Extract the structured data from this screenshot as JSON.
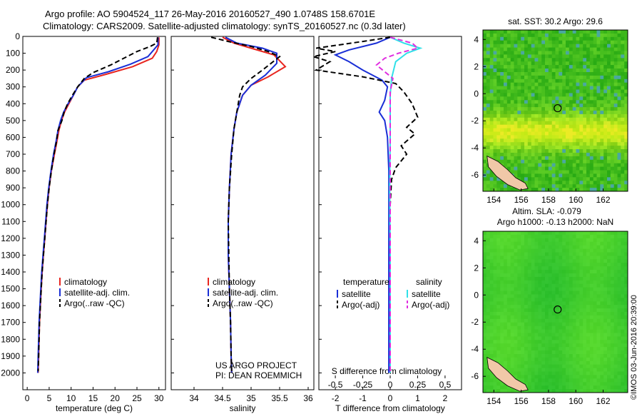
{
  "header": {
    "line1": "Argo profile: AO 5904524_117 26-May-2016 20160527_490 1.0748S 158.6701E",
    "line2": "Climatology: CARS2009. Satellite-adjusted climatology: synTS_20160527.nc (0.3d later)"
  },
  "stamp": "©IMOS 03-Jun-2016 20:39:00",
  "credit": {
    "line1": "US ARGO PROJECT",
    "line2": "PI: DEAN ROEMMICH"
  },
  "colors": {
    "climatology": "#e8251f",
    "satellite": "#1a2fd6",
    "argo": "#000000",
    "sal_satellite": "#2fe0e8",
    "sal_argo": "#e02ee0"
  },
  "chart_data": [
    {
      "type": "line",
      "id": "temperature",
      "xlabel": "temperature (deg C)",
      "ylabel": "",
      "xlim": [
        -1,
        31.5
      ],
      "ylim": [
        2100,
        0
      ],
      "xticks": [
        "0",
        "5",
        "10",
        "15",
        "20",
        "25",
        "30"
      ],
      "yticks": [
        "0",
        "100",
        "200",
        "300",
        "400",
        "500",
        "600",
        "700",
        "800",
        "900",
        "1000",
        "1100",
        "1200",
        "1300",
        "1400",
        "1500",
        "1600",
        "1700",
        "1800",
        "1900",
        "2000"
      ],
      "legend": [
        "climatology",
        "satellite-adj. clim.",
        "Argo(..raw -QC)"
      ],
      "series": [
        {
          "name": "climatology",
          "style": "solid",
          "color": "#e8251f",
          "points": [
            [
              30.0,
              5
            ],
            [
              30.0,
              50
            ],
            [
              29.5,
              90
            ],
            [
              28.5,
              130
            ],
            [
              24,
              180
            ],
            [
              18,
              225
            ],
            [
              13,
              260
            ],
            [
              11.5,
              300
            ],
            [
              10.5,
              350
            ],
            [
              9.5,
              400
            ],
            [
              8.5,
              450
            ],
            [
              7.8,
              500
            ],
            [
              7.2,
              560
            ],
            [
              6.8,
              620
            ],
            [
              6.2,
              700
            ],
            [
              5.5,
              800
            ],
            [
              5.0,
              900
            ],
            [
              4.6,
              1000
            ],
            [
              4.3,
              1100
            ],
            [
              4.0,
              1200
            ],
            [
              3.7,
              1300
            ],
            [
              3.4,
              1400
            ],
            [
              3.2,
              1500
            ],
            [
              3.0,
              1600
            ],
            [
              2.8,
              1700
            ],
            [
              2.7,
              1800
            ],
            [
              2.6,
              1900
            ],
            [
              2.5,
              2000
            ]
          ]
        },
        {
          "name": "satellite-adj. clim.",
          "style": "solid",
          "color": "#1a2fd6",
          "points": [
            [
              29.8,
              5
            ],
            [
              29.8,
              50
            ],
            [
              28.5,
              90
            ],
            [
              27.5,
              120
            ],
            [
              23.5,
              165
            ],
            [
              18.5,
              210
            ],
            [
              13.5,
              245
            ],
            [
              11.5,
              300
            ],
            [
              10.5,
              350
            ],
            [
              9.3,
              400
            ],
            [
              8.3,
              450
            ],
            [
              7.6,
              500
            ],
            [
              7.0,
              560
            ],
            [
              6.6,
              620
            ],
            [
              6.0,
              700
            ],
            [
              5.4,
              800
            ],
            [
              4.9,
              900
            ],
            [
              4.5,
              1000
            ],
            [
              4.2,
              1100
            ],
            [
              3.9,
              1200
            ],
            [
              3.6,
              1300
            ],
            [
              3.3,
              1400
            ],
            [
              3.1,
              1500
            ],
            [
              2.9,
              1600
            ],
            [
              2.7,
              1700
            ],
            [
              2.6,
              1800
            ],
            [
              2.5,
              1900
            ],
            [
              2.4,
              2000
            ]
          ]
        },
        {
          "name": "Argo(..raw -QC)",
          "style": "dashed",
          "color": "#000000",
          "points": [
            [
              29.7,
              5
            ],
            [
              29.5,
              40
            ],
            [
              28,
              60
            ],
            [
              25,
              90
            ],
            [
              22,
              130
            ],
            [
              19,
              170
            ],
            [
              15,
              215
            ],
            [
              13,
              250
            ],
            [
              11.5,
              300
            ],
            [
              10.3,
              350
            ],
            [
              9.2,
              400
            ],
            [
              8.4,
              450
            ],
            [
              7.9,
              500
            ],
            [
              7.0,
              560
            ],
            [
              6.7,
              620
            ],
            [
              6.1,
              700
            ],
            [
              5.5,
              800
            ],
            [
              5.0,
              900
            ],
            [
              4.6,
              1000
            ],
            [
              4.3,
              1100
            ],
            [
              4.0,
              1200
            ],
            [
              3.7,
              1300
            ],
            [
              3.4,
              1400
            ],
            [
              3.2,
              1500
            ],
            [
              3.0,
              1600
            ],
            [
              2.8,
              1700
            ],
            [
              2.7,
              1800
            ],
            [
              2.6,
              1900
            ],
            [
              2.5,
              1990
            ]
          ]
        }
      ]
    },
    {
      "type": "line",
      "id": "salinity",
      "xlabel": "salinity",
      "ylabel": "",
      "xlim": [
        33.6,
        36.1
      ],
      "ylim": [
        2100,
        0
      ],
      "xticks": [
        "34",
        "34.5",
        "35",
        "35.5",
        "36"
      ],
      "legend": [
        "climatology",
        "satellite-adj. clim.",
        "Argo(..raw -QC)"
      ],
      "series": [
        {
          "name": "climatology",
          "style": "solid",
          "color": "#e8251f",
          "points": [
            [
              34.5,
              5
            ],
            [
              34.7,
              40
            ],
            [
              35.0,
              70
            ],
            [
              35.4,
              110
            ],
            [
              35.6,
              180
            ],
            [
              35.3,
              240
            ],
            [
              35.0,
              290
            ],
            [
              34.85,
              350
            ],
            [
              34.75,
              450
            ],
            [
              34.7,
              550
            ],
            [
              34.65,
              700
            ],
            [
              34.62,
              900
            ],
            [
              34.6,
              1100
            ],
            [
              34.6,
              1300
            ],
            [
              34.62,
              1500
            ],
            [
              34.64,
              1700
            ],
            [
              34.65,
              1900
            ],
            [
              34.66,
              2000
            ]
          ]
        },
        {
          "name": "satellite-adj. clim.",
          "style": "solid",
          "color": "#1a2fd6",
          "points": [
            [
              34.55,
              5
            ],
            [
              34.75,
              40
            ],
            [
              35.2,
              70
            ],
            [
              35.45,
              100
            ],
            [
              35.45,
              160
            ],
            [
              35.25,
              230
            ],
            [
              35.0,
              290
            ],
            [
              34.85,
              350
            ],
            [
              34.75,
              450
            ],
            [
              34.7,
              550
            ],
            [
              34.65,
              700
            ],
            [
              34.62,
              900
            ],
            [
              34.6,
              1100
            ],
            [
              34.6,
              1300
            ],
            [
              34.62,
              1500
            ],
            [
              34.64,
              1700
            ],
            [
              34.65,
              1900
            ],
            [
              34.66,
              2000
            ]
          ]
        },
        {
          "name": "Argo(..raw -QC)",
          "style": "dashed",
          "color": "#000000",
          "points": [
            [
              34.3,
              5
            ],
            [
              34.6,
              30
            ],
            [
              35.0,
              60
            ],
            [
              35.3,
              90
            ],
            [
              35.5,
              120
            ],
            [
              35.35,
              160
            ],
            [
              35.2,
              200
            ],
            [
              35.0,
              250
            ],
            [
              34.85,
              300
            ],
            [
              34.8,
              350
            ],
            [
              34.75,
              450
            ],
            [
              34.7,
              550
            ],
            [
              34.66,
              700
            ],
            [
              34.62,
              900
            ],
            [
              34.6,
              1100
            ],
            [
              34.61,
              1300
            ],
            [
              34.62,
              1500
            ],
            [
              34.64,
              1700
            ],
            [
              34.65,
              1900
            ],
            [
              34.66,
              1990
            ]
          ]
        }
      ]
    },
    {
      "type": "line",
      "id": "difference",
      "xlabel": "T difference from climatology",
      "xlabel_top": "S difference from climatology",
      "xlim": [
        -2.6,
        2.6
      ],
      "ylim": [
        2100,
        0
      ],
      "xticks": [
        "-2",
        "-1",
        "0",
        "1",
        "2"
      ],
      "xticks_top": [
        "-0.5",
        "-0.25",
        "0",
        "0.25",
        "0.5"
      ],
      "legend_headers": [
        "temperature",
        "salinity"
      ],
      "legend": [
        "satellite",
        "Argo(-adj)",
        "satellite",
        "Argo(-adj)"
      ],
      "series": [
        {
          "name": "satellite",
          "group": "temperature",
          "style": "solid",
          "color": "#1a2fd6",
          "points": [
            [
              0,
              5
            ],
            [
              -0.5,
              40
            ],
            [
              -1.5,
              80
            ],
            [
              -2.0,
              110
            ],
            [
              -1.5,
              150
            ],
            [
              -1.0,
              200
            ],
            [
              -0.3,
              260
            ],
            [
              -0.1,
              300
            ],
            [
              -0.2,
              380
            ],
            [
              -0.4,
              450
            ],
            [
              -0.2,
              500
            ],
            [
              -0.1,
              600
            ],
            [
              -0.05,
              800
            ],
            [
              -0.05,
              1200
            ],
            [
              -0.05,
              1600
            ],
            [
              -0.05,
              2000
            ]
          ]
        },
        {
          "name": "Argo(-adj)",
          "group": "temperature",
          "style": "dashed",
          "color": "#000000",
          "points": [
            [
              0,
              5
            ],
            [
              -1.0,
              30
            ],
            [
              -2.7,
              70
            ],
            [
              -2.0,
              90
            ],
            [
              -2.8,
              120
            ],
            [
              -2.2,
              150
            ],
            [
              -2.7,
              200
            ],
            [
              -1.0,
              240
            ],
            [
              0.2,
              280
            ],
            [
              0.5,
              330
            ],
            [
              0.8,
              400
            ],
            [
              1.0,
              480
            ],
            [
              0.6,
              540
            ],
            [
              0.9,
              580
            ],
            [
              0.4,
              650
            ],
            [
              0.6,
              700
            ],
            [
              0.2,
              780
            ],
            [
              0.05,
              850
            ],
            [
              0.0,
              1000
            ],
            [
              0.0,
              1500
            ],
            [
              0.0,
              2000
            ]
          ]
        },
        {
          "name": "satellite",
          "group": "salinity",
          "style": "solid",
          "color": "#2fe0e8",
          "points": [
            [
              0,
              5
            ],
            [
              0.5,
              40
            ],
            [
              1.1,
              70
            ],
            [
              0.6,
              100
            ],
            [
              0.2,
              150
            ],
            [
              0.05,
              250
            ],
            [
              0.0,
              350
            ],
            [
              0.0,
              600
            ],
            [
              -0.02,
              900
            ],
            [
              0.0,
              1300
            ],
            [
              0.0,
              1700
            ],
            [
              0.0,
              2000
            ]
          ]
        },
        {
          "name": "Argo(-adj)",
          "group": "salinity",
          "style": "dashed",
          "color": "#e02ee0",
          "points": [
            [
              0,
              5
            ],
            [
              0.8,
              40
            ],
            [
              1.0,
              70
            ],
            [
              0.3,
              100
            ],
            [
              -0.2,
              130
            ],
            [
              -0.5,
              170
            ],
            [
              0.1,
              250
            ],
            [
              0.0,
              330
            ],
            [
              0.0,
              600
            ],
            [
              0.0,
              1000
            ],
            [
              0.0,
              1500
            ],
            [
              0.0,
              2000
            ]
          ]
        }
      ]
    },
    {
      "type": "heatmap",
      "id": "sst_map",
      "title": "sat. SST: 30.2 Argo: 29.6",
      "xlim": [
        153.2,
        163.8
      ],
      "ylim": [
        -7.2,
        4.7
      ],
      "xticks": [
        "154",
        "156",
        "158",
        "160",
        "162"
      ],
      "yticks": [
        "4",
        "2",
        "0",
        "-2",
        "-4",
        "-6"
      ],
      "float_position": [
        158.67,
        -1.07
      ]
    },
    {
      "type": "heatmap",
      "id": "sla_map",
      "title_line1": "Altim. SLA: -0.079",
      "title_line2": "Argo h1000: -0.13 h2000: NaN",
      "xlim": [
        153.2,
        163.8
      ],
      "ylim": [
        -7.2,
        4.7
      ],
      "xticks": [
        "154",
        "156",
        "158",
        "160",
        "162"
      ],
      "yticks": [
        "4",
        "2",
        "0",
        "-2",
        "-4",
        "-6"
      ],
      "float_position": [
        158.67,
        -1.07
      ]
    }
  ]
}
